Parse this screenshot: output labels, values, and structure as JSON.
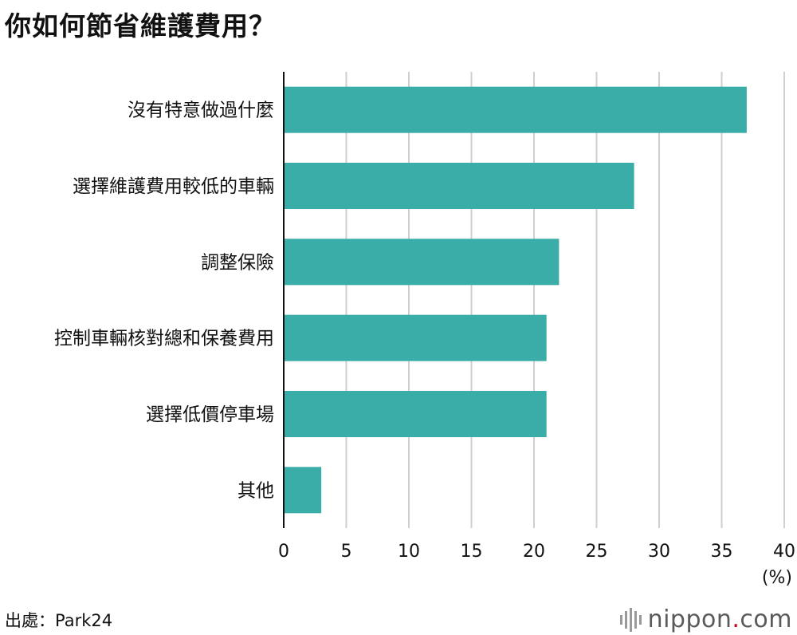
{
  "title": "你如何節省維護費用？",
  "unit_label": "(%)",
  "source": "出處：Park24",
  "brand": {
    "name": "nippon",
    "dot": ".",
    "tld": "com"
  },
  "colors": {
    "bar": "#3aada8",
    "grid": "#cfcfcf",
    "axis": "#111111"
  },
  "chart_data": {
    "type": "bar",
    "orientation": "horizontal",
    "categories": [
      "沒有特意做過什麼",
      "選擇維護費用較低的車輛",
      "調整保險",
      "控制車輛核對總和保養費用",
      "選擇低價停車場",
      "其他"
    ],
    "values": [
      37,
      28,
      22,
      21,
      21,
      3
    ],
    "xlim": [
      0,
      40
    ],
    "xticks": [
      0,
      5,
      10,
      15,
      20,
      25,
      30,
      35,
      40
    ],
    "xlabel": "(%)",
    "ylabel": "",
    "grid": true,
    "legend": "none"
  }
}
